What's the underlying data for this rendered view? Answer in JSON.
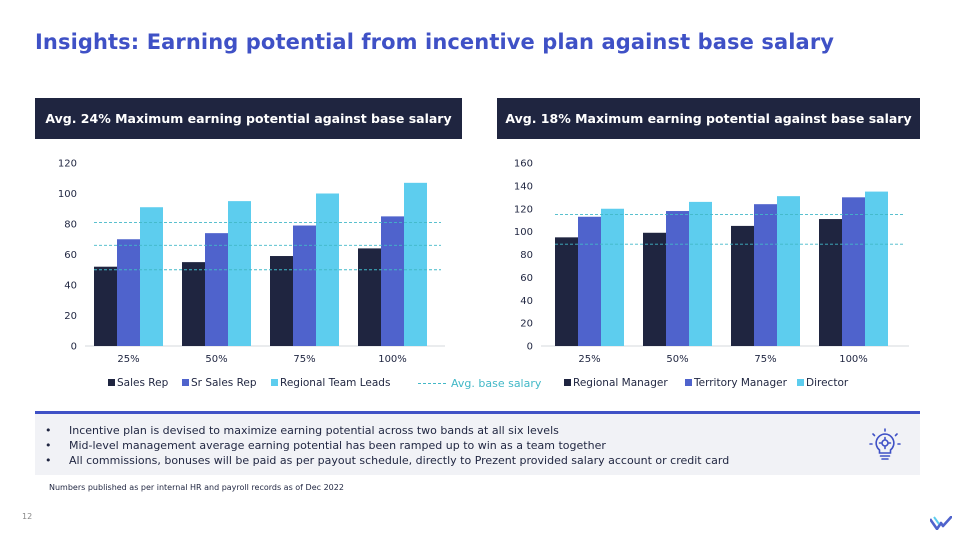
{
  "title": "Insights: Earning potential from incentive plan against base salary",
  "colors": {
    "navy": "#1f2540",
    "blue": "#4f63cc",
    "cyan": "#5dcdee",
    "avg_line": "#42b8c7"
  },
  "chart_data": [
    {
      "type": "bar",
      "header": "Avg. 24% Maximum earning potential against base salary",
      "categories": [
        "25%",
        "50%",
        "75%",
        "100%"
      ],
      "series": [
        {
          "name": "Sales Rep",
          "values": [
            52,
            55,
            59,
            64
          ]
        },
        {
          "name": "Sr Sales Rep",
          "values": [
            70,
            74,
            79,
            85
          ]
        },
        {
          "name": "Regional Team Leads",
          "values": [
            91,
            95,
            100,
            107
          ]
        }
      ],
      "ylim": [
        0,
        120
      ],
      "yticks": [
        "0",
        "20",
        "40",
        "60",
        "80",
        "100",
        "120"
      ],
      "avg_base_salary": [
        50,
        66,
        81
      ],
      "legend": "bottom"
    },
    {
      "type": "bar",
      "header": "Avg. 18% Maximum earning potential against base salary",
      "categories": [
        "25%",
        "50%",
        "75%",
        "100%"
      ],
      "series": [
        {
          "name": "Regional Manager",
          "values": [
            95,
            99,
            105,
            111
          ]
        },
        {
          "name": "Territory Manager",
          "values": [
            113,
            118,
            124,
            130
          ]
        },
        {
          "name": "Director",
          "values": [
            120,
            126,
            131,
            135
          ]
        }
      ],
      "ylim": [
        0,
        160
      ],
      "yticks": [
        "0",
        "20",
        "40",
        "60",
        "80",
        "100",
        "120",
        "140",
        "160"
      ],
      "avg_base_salary": [
        89,
        115
      ],
      "legend": "bottom"
    }
  ],
  "avg_legend_label": "Avg. base salary",
  "insights": [
    "Incentive plan is devised to maximize earning potential across two bands at all six levels",
    "Mid-level management average earning potential has been ramped up to win as a team together",
    "All commissions, bonuses will be paid as per payout schedule, directly to Prezent provided salary account or credit card"
  ],
  "bullet": "•",
  "footnote": "Numbers published as per internal HR and payroll records as of Dec 2022",
  "page_number": "12",
  "icons": {
    "insight": "lightbulb-gear-icon",
    "logo": "brand-logo-icon"
  }
}
